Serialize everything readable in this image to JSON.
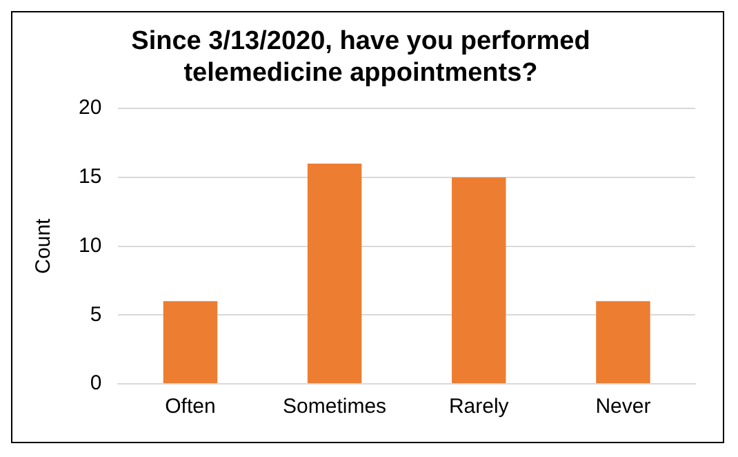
{
  "chart_data": {
    "type": "bar",
    "title": "Since 3/13/2020, have you performed telemedicine appointments?",
    "categories": [
      "Often",
      "Sometimes",
      "Rarely",
      "Never"
    ],
    "values": [
      6,
      16,
      15,
      6
    ],
    "color": "#ed7d31",
    "ylabel": "Count",
    "ylim": [
      0,
      20
    ],
    "yticks": [
      0,
      5,
      10,
      15,
      20
    ],
    "grid": "y",
    "legend": false
  }
}
